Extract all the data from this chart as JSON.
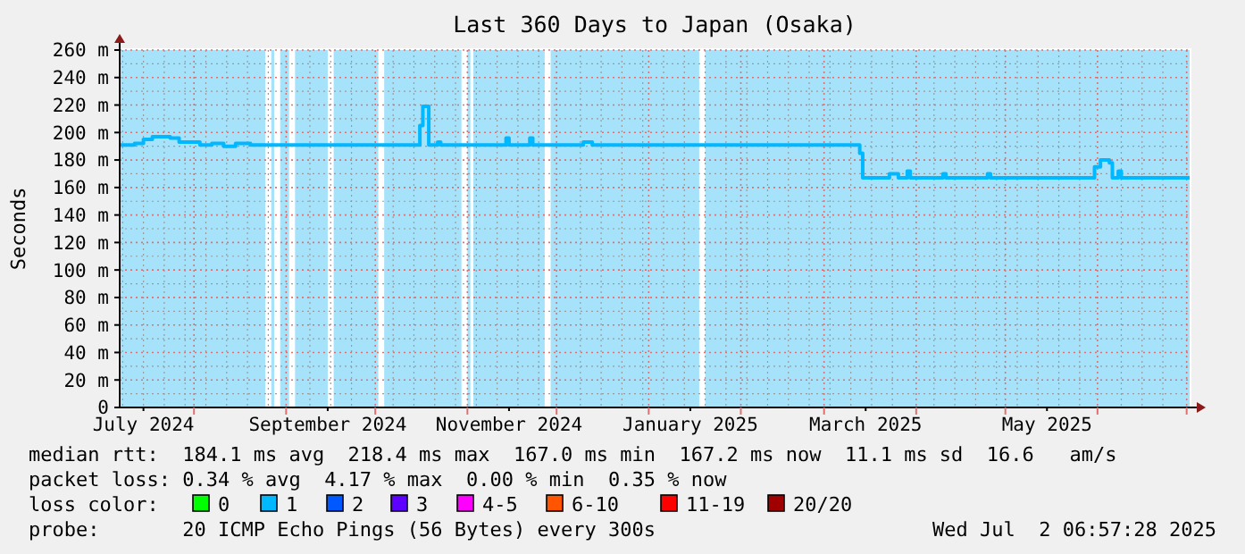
{
  "chart_data": {
    "type": "step",
    "title": "Last 360 Days to Japan (Osaka)",
    "ylabel": "Seconds",
    "xlim": [
      "2024-07-07",
      "2025-07-02"
    ],
    "xticks": [
      {
        "value": "2024-07-15",
        "label": "July 2024"
      },
      {
        "value": "2024-09-15",
        "label": "September 2024"
      },
      {
        "value": "2024-11-15",
        "label": "November 2024"
      },
      {
        "value": "2025-01-15",
        "label": "January 2025"
      },
      {
        "value": "2025-03-15",
        "label": "March 2025"
      },
      {
        "value": "2025-05-15",
        "label": "May 2025"
      }
    ],
    "ylim": [
      0,
      260
    ],
    "yticks": [
      {
        "value": 0,
        "label": "0"
      },
      {
        "value": 20,
        "label": "20 m"
      },
      {
        "value": 40,
        "label": "40 m"
      },
      {
        "value": 60,
        "label": "60 m"
      },
      {
        "value": 80,
        "label": "80 m"
      },
      {
        "value": 100,
        "label": "100 m"
      },
      {
        "value": 120,
        "label": "120 m"
      },
      {
        "value": 140,
        "label": "140 m"
      },
      {
        "value": 160,
        "label": "160 m"
      },
      {
        "value": 180,
        "label": "180 m"
      },
      {
        "value": 200,
        "label": "200 m"
      },
      {
        "value": 220,
        "label": "220 m"
      },
      {
        "value": 240,
        "label": "240 m"
      },
      {
        "value": 260,
        "label": "260 m"
      }
    ],
    "grid": true,
    "x": [
      "2024-07-07",
      "2024-07-12",
      "2024-07-15",
      "2024-07-18",
      "2024-07-21",
      "2024-07-24",
      "2024-07-27",
      "2024-07-30",
      "2024-08-03",
      "2024-08-07",
      "2024-08-11",
      "2024-08-15",
      "2024-08-20",
      "2024-10-16",
      "2024-10-17",
      "2024-10-19",
      "2024-10-20",
      "2024-10-22",
      "2024-10-23",
      "2024-11-14",
      "2024-11-15",
      "2024-11-22",
      "2024-11-23",
      "2024-12-10",
      "2024-12-13",
      "2025-03-13",
      "2025-03-14",
      "2025-03-23",
      "2025-03-26",
      "2025-03-29",
      "2025-03-30",
      "2025-04-10",
      "2025-04-11",
      "2025-04-25",
      "2025-04-26",
      "2025-05-31",
      "2025-06-02",
      "2025-06-05",
      "2025-06-06",
      "2025-06-08",
      "2025-06-09",
      "2025-07-02"
    ],
    "series": [
      {
        "color": "#00b8ff",
        "values": [
          191,
          192,
          195,
          197,
          197,
          196,
          193,
          193,
          191,
          192,
          190,
          192,
          191,
          205,
          219,
          191,
          191,
          193,
          191,
          196,
          191,
          196,
          191,
          193,
          191,
          185,
          167,
          170,
          167,
          172,
          167,
          170,
          167,
          170,
          167,
          175,
          180,
          178,
          167,
          172,
          167,
          167
        ]
      }
    ],
    "bands": [
      {
        "axis": "x",
        "from": "2024-07-07",
        "to": "2024-08-25",
        "color": "#a6e3fa"
      },
      {
        "axis": "x",
        "from": "2024-08-27",
        "to": "2024-08-28",
        "color": "#a6e3fa"
      },
      {
        "axis": "x",
        "from": "2024-08-30",
        "to": "2024-09-02",
        "color": "#a6e3fa"
      },
      {
        "axis": "x",
        "from": "2024-09-04",
        "to": "2024-09-15",
        "color": "#a6e3fa"
      },
      {
        "axis": "x",
        "from": "2024-09-17",
        "to": "2024-10-02",
        "color": "#a6e3fa"
      },
      {
        "axis": "x",
        "from": "2024-10-04",
        "to": "2024-10-30",
        "color": "#a6e3fa"
      },
      {
        "axis": "x",
        "from": "2024-11-01",
        "to": "2024-11-02",
        "color": "#a6e3fa"
      },
      {
        "axis": "x",
        "from": "2024-11-03",
        "to": "2024-11-27",
        "color": "#a6e3fa"
      },
      {
        "axis": "x",
        "from": "2024-11-29",
        "to": "2025-01-18",
        "color": "#a6e3fa"
      },
      {
        "axis": "x",
        "from": "2025-01-20",
        "to": "2025-07-02",
        "color": "#a6e3fa"
      }
    ],
    "annotations": [
      "median rtt:  184.1 ms avg  218.4 ms max  167.0 ms min  167.2 ms now  11.1 ms sd  16.6   am/s",
      "packet loss: 0.34 % avg  4.17 % max  0.00 % min  0.35 % now",
      "loss color:",
      "0",
      "1",
      "2",
      "3",
      "4-5",
      "6-10",
      "11-19",
      "20/20",
      "probe:       20 ICMP Echo Pings (56 Bytes) every 300s",
      "Wed Jul  2 06:57:28 2025"
    ]
  }
}
